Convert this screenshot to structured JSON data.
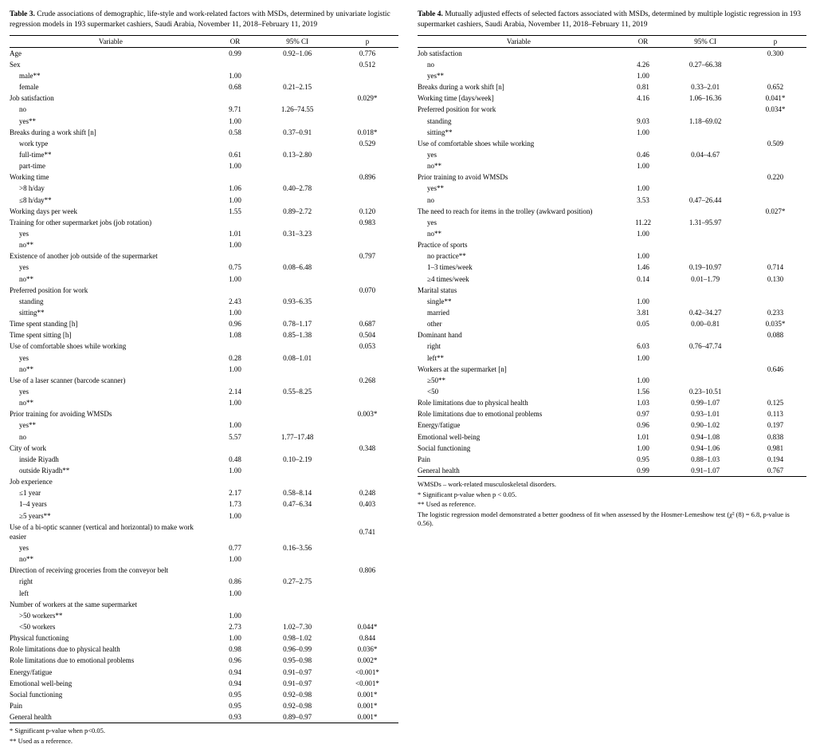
{
  "tables": [
    {
      "number": "Table 3.",
      "caption": "Crude associations of demographic, life-style and work-related factors with MSDs, determined by univariate logistic regression models in 193 supermarket cashiers, Saudi Arabia, November 11, 2018–February 11, 2019",
      "headers": [
        "Variable",
        "OR",
        "95% CI",
        "p"
      ],
      "rows": [
        {
          "ind": 0,
          "v": "Age",
          "or": "0.99",
          "ci": "0.92–1.06",
          "p": "0.776"
        },
        {
          "ind": 0,
          "v": "Sex",
          "or": "",
          "ci": "",
          "p": "0.512"
        },
        {
          "ind": 1,
          "v": "male**",
          "or": "1.00",
          "ci": "",
          "p": ""
        },
        {
          "ind": 1,
          "v": "female",
          "or": "0.68",
          "ci": "0.21–2.15",
          "p": ""
        },
        {
          "ind": 0,
          "v": "Job satisfaction",
          "or": "",
          "ci": "",
          "p": "0.029*"
        },
        {
          "ind": 1,
          "v": "no",
          "or": "9.71",
          "ci": "1.26–74.55",
          "p": ""
        },
        {
          "ind": 1,
          "v": "yes**",
          "or": "1.00",
          "ci": "",
          "p": ""
        },
        {
          "ind": 0,
          "v": "Breaks during a work shift [n]",
          "or": "0.58",
          "ci": "0.37–0.91",
          "p": "0.018*"
        },
        {
          "ind": 1,
          "v": "work type",
          "or": "",
          "ci": "",
          "p": "0.529"
        },
        {
          "ind": 1,
          "v": "full-time**",
          "or": "0.61",
          "ci": "0.13–2.80",
          "p": ""
        },
        {
          "ind": 1,
          "v": "part-time",
          "or": "1.00",
          "ci": "",
          "p": ""
        },
        {
          "ind": 0,
          "v": "Working time",
          "or": "",
          "ci": "",
          "p": "0.896"
        },
        {
          "ind": 1,
          "v": ">8 h/day",
          "or": "1.06",
          "ci": "0.40–2.78",
          "p": ""
        },
        {
          "ind": 1,
          "v": "≤8 h/day**",
          "or": "1.00",
          "ci": "",
          "p": ""
        },
        {
          "ind": 0,
          "v": "Working days per week",
          "or": "1.55",
          "ci": "0.89–2.72",
          "p": "0.120"
        },
        {
          "ind": 0,
          "v": "Training for other supermarket jobs (job rotation)",
          "or": "",
          "ci": "",
          "p": "0.983"
        },
        {
          "ind": 1,
          "v": "yes",
          "or": "1.01",
          "ci": "0.31–3.23",
          "p": ""
        },
        {
          "ind": 1,
          "v": "no**",
          "or": "1.00",
          "ci": "",
          "p": ""
        },
        {
          "ind": 0,
          "v": "Existence of another job outside of the supermarket",
          "or": "",
          "ci": "",
          "p": "0.797"
        },
        {
          "ind": 1,
          "v": "yes",
          "or": "0.75",
          "ci": "0.08–6.48",
          "p": ""
        },
        {
          "ind": 1,
          "v": "no**",
          "or": "1.00",
          "ci": "",
          "p": ""
        },
        {
          "ind": 0,
          "v": "Preferred position for work",
          "or": "",
          "ci": "",
          "p": "0.070"
        },
        {
          "ind": 1,
          "v": "standing",
          "or": "2.43",
          "ci": "0.93–6.35",
          "p": ""
        },
        {
          "ind": 1,
          "v": "sitting**",
          "or": "1.00",
          "ci": "",
          "p": ""
        },
        {
          "ind": 0,
          "v": "Time spent standing [h]",
          "or": "0.96",
          "ci": "0.78–1.17",
          "p": "0.687"
        },
        {
          "ind": 0,
          "v": "Time spent sitting [h]",
          "or": "1.08",
          "ci": "0.85–1.38",
          "p": "0.504"
        },
        {
          "ind": 0,
          "v": "Use of comfortable shoes while working",
          "or": "",
          "ci": "",
          "p": "0.053"
        },
        {
          "ind": 1,
          "v": "yes",
          "or": "0.28",
          "ci": "0.08–1.01",
          "p": ""
        },
        {
          "ind": 1,
          "v": "no**",
          "or": "1.00",
          "ci": "",
          "p": ""
        },
        {
          "ind": 0,
          "v": "Use of a laser scanner (barcode scanner)",
          "or": "",
          "ci": "",
          "p": "0.268"
        },
        {
          "ind": 1,
          "v": "yes",
          "or": "2.14",
          "ci": "0.55–8.25",
          "p": ""
        },
        {
          "ind": 1,
          "v": "no**",
          "or": "1.00",
          "ci": "",
          "p": ""
        },
        {
          "ind": 0,
          "v": "Prior training for avoiding WMSDs",
          "or": "",
          "ci": "",
          "p": "0.003*"
        },
        {
          "ind": 1,
          "v": "yes**",
          "or": "1.00",
          "ci": "",
          "p": ""
        },
        {
          "ind": 1,
          "v": "no",
          "or": "5.57",
          "ci": "1.77–17.48",
          "p": ""
        },
        {
          "ind": 0,
          "v": "City of work",
          "or": "",
          "ci": "",
          "p": "0.348"
        },
        {
          "ind": 1,
          "v": "inside Riyadh",
          "or": "0.48",
          "ci": "0.10–2.19",
          "p": ""
        },
        {
          "ind": 1,
          "v": "outside Riyadh**",
          "or": "1.00",
          "ci": "",
          "p": ""
        },
        {
          "ind": 0,
          "v": "Job experience",
          "or": "",
          "ci": "",
          "p": ""
        },
        {
          "ind": 1,
          "v": "≤1 year",
          "or": "2.17",
          "ci": "0.58–8.14",
          "p": "0.248"
        },
        {
          "ind": 1,
          "v": "1–4 years",
          "or": "1.73",
          "ci": "0.47–6.34",
          "p": "0.403"
        },
        {
          "ind": 1,
          "v": "≥5 years**",
          "or": "1.00",
          "ci": "",
          "p": ""
        },
        {
          "ind": 0,
          "v": "Use of a bi-optic scanner (vertical and horizontal) to make work easier",
          "or": "",
          "ci": "",
          "p": "0.741"
        },
        {
          "ind": 1,
          "v": "yes",
          "or": "0.77",
          "ci": "0.16–3.56",
          "p": ""
        },
        {
          "ind": 1,
          "v": "no**",
          "or": "1.00",
          "ci": "",
          "p": ""
        },
        {
          "ind": 0,
          "v": "Direction of receiving groceries from the conveyor belt",
          "or": "",
          "ci": "",
          "p": "0.806"
        },
        {
          "ind": 1,
          "v": "right",
          "or": "0.86",
          "ci": "0.27–2.75",
          "p": ""
        },
        {
          "ind": 1,
          "v": "left",
          "or": "1.00",
          "ci": "",
          "p": ""
        },
        {
          "ind": 0,
          "v": "Number of workers at the same supermarket",
          "or": "",
          "ci": "",
          "p": ""
        },
        {
          "ind": 1,
          "v": ">50 workers**",
          "or": "1.00",
          "ci": "",
          "p": ""
        },
        {
          "ind": 1,
          "v": "<50 workers",
          "or": "2.73",
          "ci": "1.02–7.30",
          "p": "0.044*"
        },
        {
          "ind": 0,
          "v": "Physical functioning",
          "or": "1.00",
          "ci": "0.98–1.02",
          "p": "0.844"
        },
        {
          "ind": 0,
          "v": "Role limitations due to physical health",
          "or": "0.98",
          "ci": "0.96–0.99",
          "p": "0.036*"
        },
        {
          "ind": 0,
          "v": "Role limitations due to emotional problems",
          "or": "0.96",
          "ci": "0.95–0.98",
          "p": "0.002*"
        },
        {
          "ind": 0,
          "v": "Energy/fatigue",
          "or": "0.94",
          "ci": "0.91–0.97",
          "p": "<0.001*"
        },
        {
          "ind": 0,
          "v": "Emotional well-being",
          "or": "0.94",
          "ci": "0.91–0.97",
          "p": "<0.001*"
        },
        {
          "ind": 0,
          "v": "Social functioning",
          "or": "0.95",
          "ci": "0.92–0.98",
          "p": "0.001*"
        },
        {
          "ind": 0,
          "v": "Pain",
          "or": "0.95",
          "ci": "0.92–0.98",
          "p": "0.001*"
        },
        {
          "ind": 0,
          "v": "General health",
          "or": "0.93",
          "ci": "0.89–0.97",
          "p": "0.001*"
        }
      ],
      "footnotes": [
        "* Significant p-value when p<0.05.",
        "** Used as a reference."
      ]
    },
    {
      "number": "Table 4.",
      "caption": "Mutually adjusted effects of selected factors associated with MSDs, determined by multiple logistic regression in 193 supermarket cashiers, Saudi Arabia, November 11, 2018–February 11, 2019",
      "headers": [
        "Variable",
        "OR",
        "95% CI",
        "p"
      ],
      "rows": [
        {
          "ind": 0,
          "v": "Job satisfaction",
          "or": "",
          "ci": "",
          "p": "0.300"
        },
        {
          "ind": 1,
          "v": "no",
          "or": "4.26",
          "ci": "0.27–66.38",
          "p": ""
        },
        {
          "ind": 1,
          "v": "yes**",
          "or": "1.00",
          "ci": "",
          "p": ""
        },
        {
          "ind": 0,
          "v": "Breaks during a work shift [n]",
          "or": "0.81",
          "ci": "0.33–2.01",
          "p": "0.652"
        },
        {
          "ind": 0,
          "v": "Working time [days/week]",
          "or": "4.16",
          "ci": "1.06–16.36",
          "p": "0.041*"
        },
        {
          "ind": 0,
          "v": "Preferred position for work",
          "or": "",
          "ci": "",
          "p": "0.034*"
        },
        {
          "ind": 1,
          "v": "standing",
          "or": "9.03",
          "ci": "1.18–69.02",
          "p": ""
        },
        {
          "ind": 1,
          "v": "sitting**",
          "or": "1.00",
          "ci": "",
          "p": ""
        },
        {
          "ind": 0,
          "v": "Use of comfortable shoes while working",
          "or": "",
          "ci": "",
          "p": "0.509"
        },
        {
          "ind": 1,
          "v": "yes",
          "or": "0.46",
          "ci": "0.04–4.67",
          "p": ""
        },
        {
          "ind": 1,
          "v": "no**",
          "or": "1.00",
          "ci": "",
          "p": ""
        },
        {
          "ind": 0,
          "v": "Prior training to avoid WMSDs",
          "or": "",
          "ci": "",
          "p": "0.220"
        },
        {
          "ind": 1,
          "v": "yes**",
          "or": "1.00",
          "ci": "",
          "p": ""
        },
        {
          "ind": 1,
          "v": "no",
          "or": "3.53",
          "ci": "0.47–26.44",
          "p": ""
        },
        {
          "ind": 0,
          "v": "The need to reach for items in the trolley (awkward position)",
          "or": "",
          "ci": "",
          "p": "0.027*"
        },
        {
          "ind": 1,
          "v": "yes",
          "or": "11.22",
          "ci": "1.31–95.97",
          "p": ""
        },
        {
          "ind": 1,
          "v": "no**",
          "or": "1.00",
          "ci": "",
          "p": ""
        },
        {
          "ind": 0,
          "v": "Practice of sports",
          "or": "",
          "ci": "",
          "p": ""
        },
        {
          "ind": 1,
          "v": "no practice**",
          "or": "1.00",
          "ci": "",
          "p": ""
        },
        {
          "ind": 1,
          "v": "1–3 times/week",
          "or": "1.46",
          "ci": "0.19–10.97",
          "p": "0.714"
        },
        {
          "ind": 1,
          "v": "≥4 times/week",
          "or": "0.14",
          "ci": "0.01–1.79",
          "p": "0.130"
        },
        {
          "ind": 0,
          "v": "Marital status",
          "or": "",
          "ci": "",
          "p": ""
        },
        {
          "ind": 1,
          "v": "single**",
          "or": "1.00",
          "ci": "",
          "p": ""
        },
        {
          "ind": 1,
          "v": "married",
          "or": "3.81",
          "ci": "0.42–34.27",
          "p": "0.233"
        },
        {
          "ind": 1,
          "v": "other",
          "or": "0.05",
          "ci": "0.00–0.81",
          "p": "0.035*"
        },
        {
          "ind": 0,
          "v": "Dominant hand",
          "or": "",
          "ci": "",
          "p": "0.088"
        },
        {
          "ind": 1,
          "v": "right",
          "or": "6.03",
          "ci": "0.76–47.74",
          "p": ""
        },
        {
          "ind": 1,
          "v": "left**",
          "or": "1.00",
          "ci": "",
          "p": ""
        },
        {
          "ind": 0,
          "v": "Workers at the supermarket [n]",
          "or": "",
          "ci": "",
          "p": "0.646"
        },
        {
          "ind": 1,
          "v": "≥50**",
          "or": "1.00",
          "ci": "",
          "p": ""
        },
        {
          "ind": 1,
          "v": "<50",
          "or": "1.56",
          "ci": "0.23–10.51",
          "p": ""
        },
        {
          "ind": 0,
          "v": "Role limitations due to physical health",
          "or": "1.03",
          "ci": "0.99–1.07",
          "p": "0.125"
        },
        {
          "ind": 0,
          "v": "Role limitations due to emotional problems",
          "or": "0.97",
          "ci": "0.93–1.01",
          "p": "0.113"
        },
        {
          "ind": 0,
          "v": "Energy/fatigue",
          "or": "0.96",
          "ci": "0.90–1.02",
          "p": "0.197"
        },
        {
          "ind": 0,
          "v": "Emotional well-being",
          "or": "1.01",
          "ci": "0.94–1.08",
          "p": "0.838"
        },
        {
          "ind": 0,
          "v": "Social functioning",
          "or": "1.00",
          "ci": "0.94–1.06",
          "p": "0.981"
        },
        {
          "ind": 0,
          "v": "Pain",
          "or": "0.95",
          "ci": "0.88–1.03",
          "p": "0.194"
        },
        {
          "ind": 0,
          "v": "General health",
          "or": "0.99",
          "ci": "0.91–1.07",
          "p": "0.767"
        }
      ],
      "footnotes": [
        "WMSDs – work-related musculoskeletal disorders.",
        "* Significant p-value when p < 0.05.",
        "** Used as reference.",
        "The logistic regression model demonstrated a better goodness of fit when assessed by the Hosmer-Lemeshow test (χ² (8) = 6.8, p-value is 0.56)."
      ]
    }
  ]
}
